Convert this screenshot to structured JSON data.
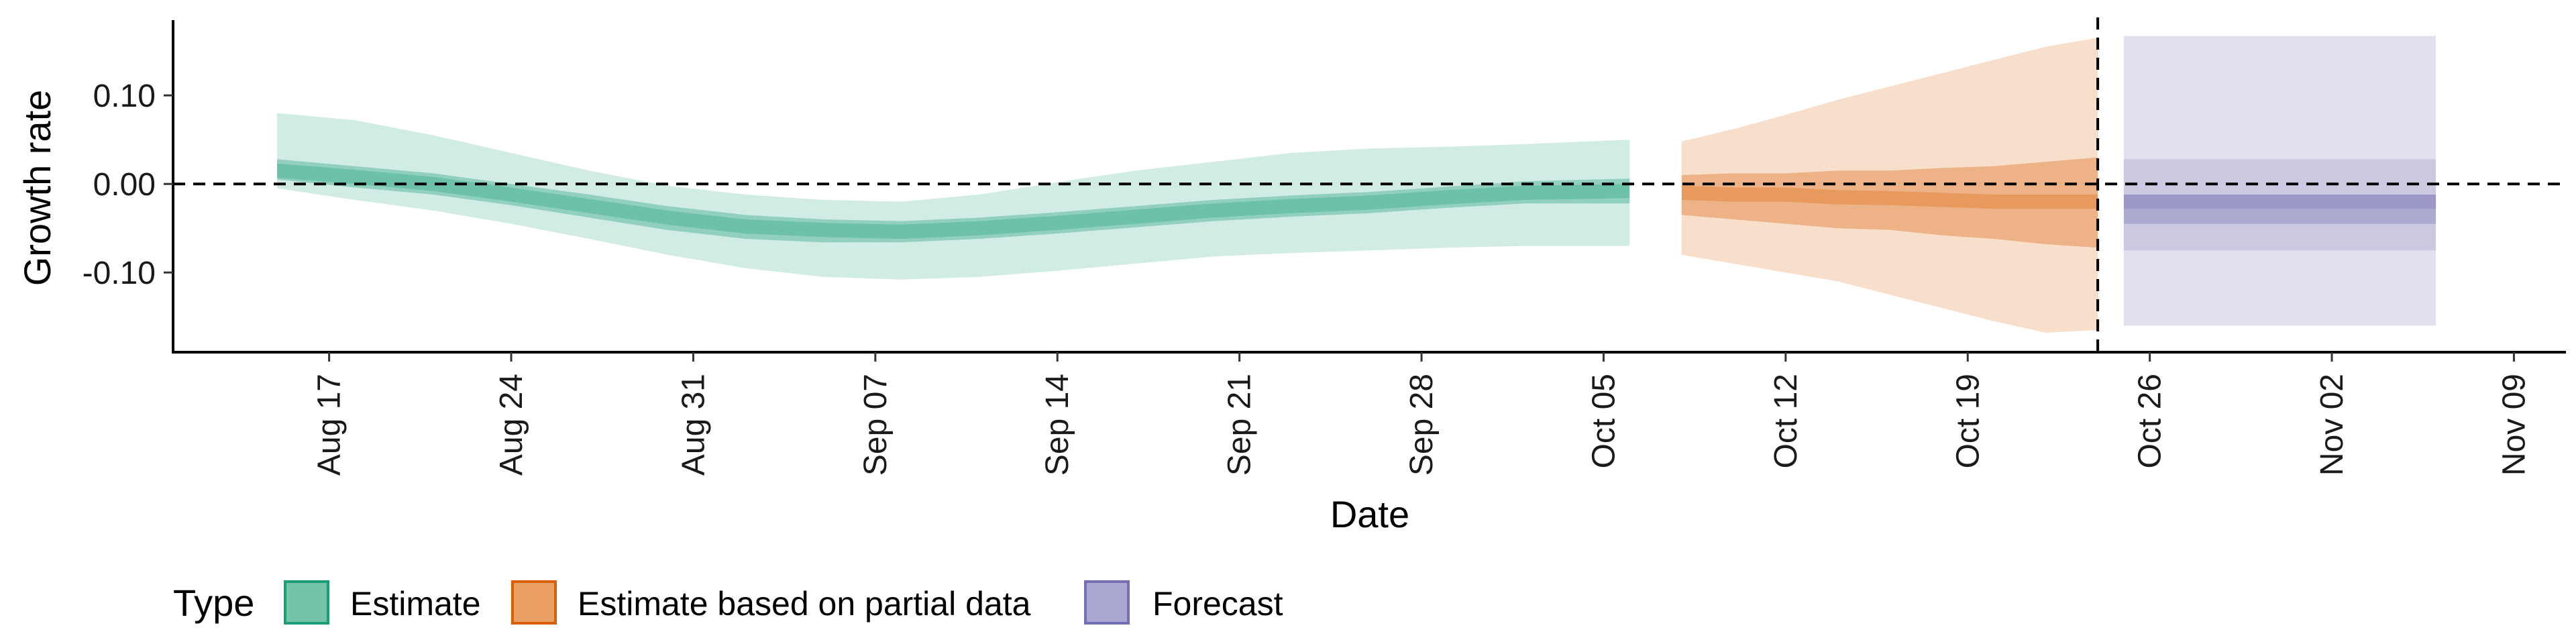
{
  "chart_data": {
    "type": "area",
    "xlabel": "Date",
    "ylabel": "Growth rate",
    "x_ticks": [
      "Aug 17",
      "Aug 24",
      "Aug 31",
      "Sep 07",
      "Sep 14",
      "Sep 21",
      "Sep 28",
      "Oct 05",
      "Oct 12",
      "Oct 19",
      "Oct 26",
      "Nov 02",
      "Nov 09"
    ],
    "y_ticks": [
      "0.10",
      "0.00",
      "-0.10"
    ],
    "y_tick_values": [
      0.1,
      0.0,
      -0.1
    ],
    "xlim": [
      "2020-08-11",
      "2020-11-11"
    ],
    "ylim": [
      -0.19,
      0.185
    ],
    "reference_lines": [
      {
        "axis": "y",
        "value": 0.0,
        "style": "dashed"
      },
      {
        "axis": "x",
        "value": "2020-10-24",
        "style": "dashed"
      }
    ],
    "legend": {
      "title": "Type",
      "position": "bottom",
      "entries": [
        {
          "label": "Estimate",
          "color": "#1b9e77"
        },
        {
          "label": "Estimate based on partial data",
          "color": "#d95f02"
        },
        {
          "label": "Forecast",
          "color": "#7570b3"
        }
      ]
    },
    "series": [
      {
        "name": "Estimate",
        "color": "#1b9e77",
        "x": [
          "2020-08-15",
          "2020-08-18",
          "2020-08-21",
          "2020-08-24",
          "2020-08-27",
          "2020-08-30",
          "2020-09-02",
          "2020-09-05",
          "2020-09-08",
          "2020-09-11",
          "2020-09-14",
          "2020-09-17",
          "2020-09-20",
          "2020-09-23",
          "2020-09-26",
          "2020-09-29",
          "2020-10-02",
          "2020-10-06"
        ],
        "median": [
          0.015,
          0.008,
          0.0,
          -0.012,
          -0.025,
          -0.038,
          -0.048,
          -0.052,
          -0.054,
          -0.05,
          -0.044,
          -0.037,
          -0.03,
          -0.025,
          -0.021,
          -0.015,
          -0.01,
          -0.008
        ],
        "inner_lower": [
          0.005,
          -0.004,
          -0.012,
          -0.024,
          -0.038,
          -0.052,
          -0.062,
          -0.066,
          -0.066,
          -0.062,
          -0.056,
          -0.049,
          -0.042,
          -0.037,
          -0.033,
          -0.027,
          -0.022,
          -0.022
        ],
        "inner_upper": [
          0.028,
          0.02,
          0.012,
          0.0,
          -0.012,
          -0.025,
          -0.035,
          -0.04,
          -0.042,
          -0.038,
          -0.032,
          -0.025,
          -0.018,
          -0.013,
          -0.009,
          -0.003,
          0.003,
          0.006
        ],
        "outer_lower": [
          -0.005,
          -0.018,
          -0.03,
          -0.045,
          -0.062,
          -0.08,
          -0.095,
          -0.105,
          -0.108,
          -0.105,
          -0.098,
          -0.09,
          -0.082,
          -0.078,
          -0.075,
          -0.072,
          -0.07,
          -0.07
        ],
        "outer_upper": [
          0.08,
          0.072,
          0.055,
          0.035,
          0.015,
          -0.002,
          -0.012,
          -0.018,
          -0.02,
          -0.012,
          0.002,
          0.015,
          0.025,
          0.035,
          0.04,
          0.042,
          0.045,
          0.05
        ]
      },
      {
        "name": "Estimate based on partial data",
        "color": "#d95f02",
        "x": [
          "2020-10-08",
          "2020-10-10",
          "2020-10-12",
          "2020-10-14",
          "2020-10-16",
          "2020-10-18",
          "2020-10-20",
          "2020-10-22",
          "2020-10-24"
        ],
        "median": [
          -0.01,
          -0.012,
          -0.012,
          -0.015,
          -0.016,
          -0.018,
          -0.02,
          -0.02,
          -0.02
        ],
        "inner_lower": [
          -0.035,
          -0.04,
          -0.045,
          -0.05,
          -0.052,
          -0.058,
          -0.062,
          -0.068,
          -0.072
        ],
        "inner_upper": [
          0.01,
          0.012,
          0.012,
          0.015,
          0.015,
          0.018,
          0.02,
          0.025,
          0.03
        ],
        "outer_lower": [
          -0.08,
          -0.09,
          -0.1,
          -0.11,
          -0.125,
          -0.14,
          -0.155,
          -0.168,
          -0.165
        ],
        "outer_upper": [
          0.048,
          0.062,
          0.078,
          0.095,
          0.11,
          0.125,
          0.14,
          0.155,
          0.165
        ]
      },
      {
        "name": "Forecast",
        "color": "#7570b3",
        "x": [
          "2020-10-25",
          "2020-11-06"
        ],
        "median": [
          -0.02,
          -0.02
        ],
        "inner_lower": [
          -0.045,
          -0.045
        ],
        "inner_upper": [
          -0.012,
          -0.012
        ],
        "outer_lower": [
          -0.075,
          -0.075
        ],
        "outer_upper": [
          0.028,
          0.028
        ],
        "band_lower": [
          -0.16,
          -0.16
        ],
        "band_upper": [
          0.167,
          0.167
        ]
      }
    ]
  }
}
